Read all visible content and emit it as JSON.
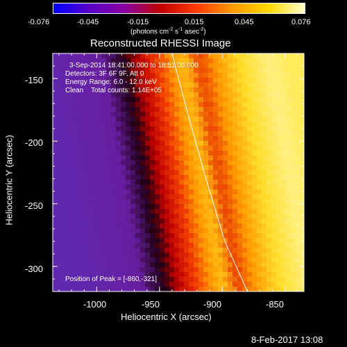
{
  "colorbar": {
    "ticks": [
      "-0.076",
      "-0.045",
      "-0.015",
      "0.015",
      "0.045",
      "0.076"
    ],
    "unit_prefix": "(photons cm",
    "unit_sup1": "-2",
    "unit_mid": " s",
    "unit_sup2": "-1",
    "unit_mid2": " asec",
    "unit_sup3": "-2",
    "unit_suffix": ")",
    "colors": [
      "#0000ff",
      "#5a00c8",
      "#8a00a0",
      "#c20000",
      "#ff3c00",
      "#ff9a00",
      "#ffd800",
      "#ffffcc"
    ]
  },
  "info": {
    "line1": "3-Sep-2014 18:41:00.000 to 18:51:00.000",
    "line2": "Detectors: 3F 6F 9F, Att 0",
    "line3": "Energy Range: 6.0 - 12.0 keV",
    "line4": "Clean    Total counts: 1.14E+05",
    "peak": "Position of Peak = [-860,-321]"
  },
  "footer": {
    "date": "8-Feb-2017 13:08"
  },
  "chart_data": {
    "type": "heatmap",
    "title": "Reconstructed RHESSI Image",
    "xlabel": "Heliocentric X (arcsec)",
    "ylabel": "Heliocentric Y (arcsec)",
    "xlim": [
      -1035,
      -835
    ],
    "ylim": [
      -320,
      -130
    ],
    "xticks": [
      -1000,
      -950,
      -900,
      -850
    ],
    "yticks": [
      -150,
      -200,
      -250,
      -300
    ],
    "x_tick_labels": [
      "-1000",
      "-950",
      "-900",
      "-850"
    ],
    "y_tick_labels": [
      "-150",
      "-200",
      "-250",
      "-300"
    ],
    "colorbar_range": [
      -0.076,
      0.076
    ],
    "limb_curve": {
      "x": [
        -940,
        -927,
        -913,
        -898,
        -880
      ],
      "y": [
        -130,
        -180,
        -230,
        -280,
        -320
      ]
    },
    "peak": {
      "x": -860,
      "y": -321
    }
  }
}
